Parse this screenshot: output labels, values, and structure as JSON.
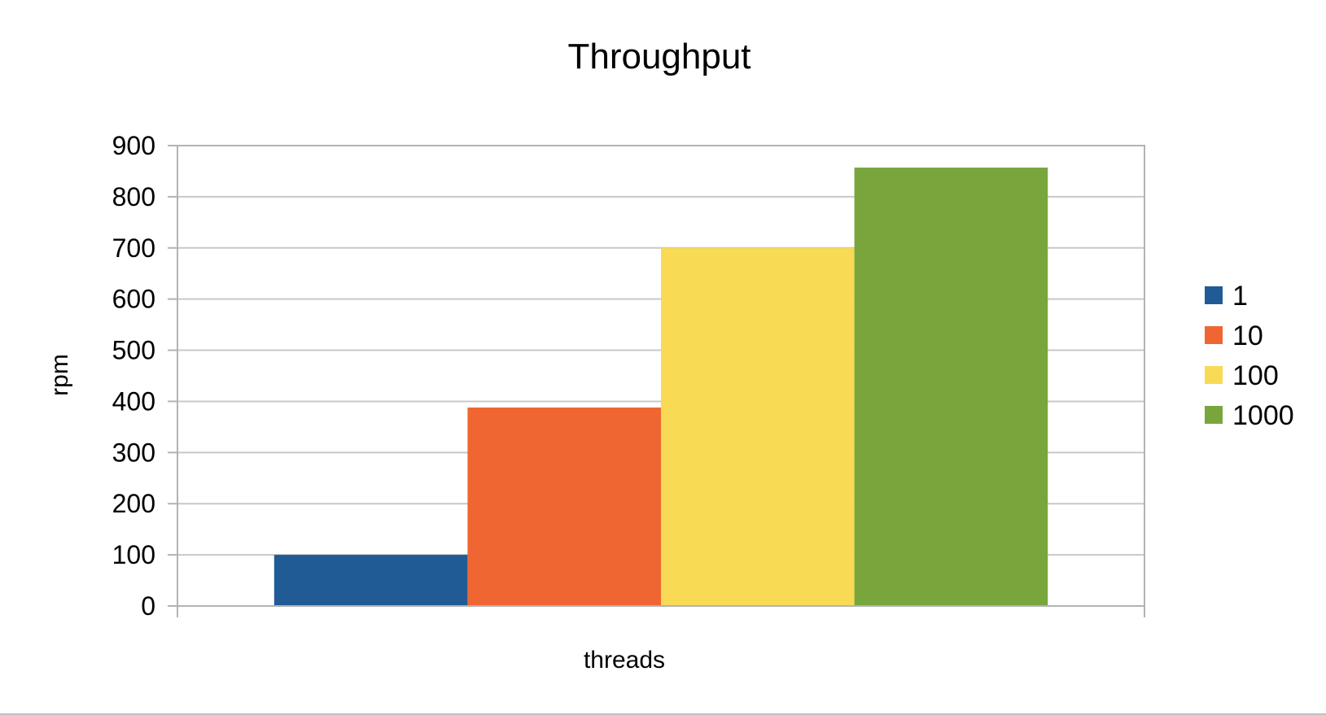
{
  "chart_data": {
    "type": "bar",
    "title": "Throughput",
    "xlabel": "threads",
    "ylabel": "rpm",
    "ylim": [
      0,
      900
    ],
    "yticks": [
      0,
      100,
      200,
      300,
      400,
      500,
      600,
      700,
      800,
      900
    ],
    "grid": true,
    "legend_position": "right",
    "categories": [
      ""
    ],
    "series": [
      {
        "name": "1",
        "color": "#215b95",
        "values": [
          100
        ]
      },
      {
        "name": "10",
        "color": "#ef6632",
        "values": [
          388
        ]
      },
      {
        "name": "100",
        "color": "#f9da54",
        "values": [
          700
        ]
      },
      {
        "name": "1000",
        "color": "#79a63c",
        "values": [
          857
        ]
      }
    ]
  }
}
